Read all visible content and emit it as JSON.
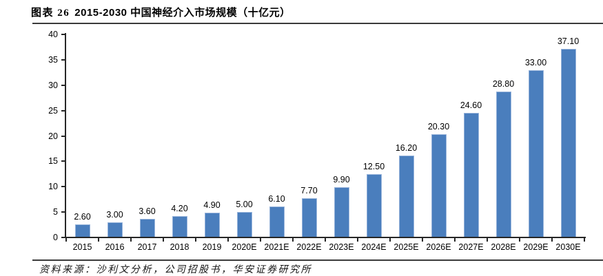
{
  "figure": {
    "title_prefix": "图表 26",
    "title_text": "2015-2030 中国神经介入市场规模（十亿元）",
    "source": "资料来源：沙利文分析，公司招股书，华安证券研究所"
  },
  "chart_data": {
    "type": "bar",
    "title": "图表 26 2015-2030 中国神经介入市场规模（十亿元）",
    "unit": "十亿元",
    "categories": [
      "2015",
      "2016",
      "2017",
      "2018",
      "2019",
      "2020E",
      "2021E",
      "2022E",
      "2023E",
      "2024E",
      "2025E",
      "2026E",
      "2027E",
      "2028E",
      "2029E",
      "2030E"
    ],
    "values": [
      2.6,
      3.0,
      3.6,
      4.2,
      4.9,
      5.0,
      6.1,
      7.7,
      9.9,
      12.5,
      16.2,
      20.3,
      24.6,
      28.8,
      33.0,
      37.1
    ],
    "value_labels": [
      "2.60",
      "3.00",
      "3.60",
      "4.20",
      "4.90",
      "5.00",
      "6.10",
      "7.70",
      "9.90",
      "12.50",
      "16.20",
      "20.30",
      "24.60",
      "28.80",
      "33.00",
      "37.10"
    ],
    "xlabel": "",
    "ylabel": "",
    "ylim": [
      0,
      40
    ],
    "yticks": [
      0,
      5,
      10,
      15,
      20,
      25,
      30,
      35,
      40
    ],
    "grid": false,
    "legend": "none",
    "bar_color": "#4a7ebd",
    "bar_edge_color": "#98b4db",
    "axis_color": "#262626",
    "text_color": "#000000"
  }
}
